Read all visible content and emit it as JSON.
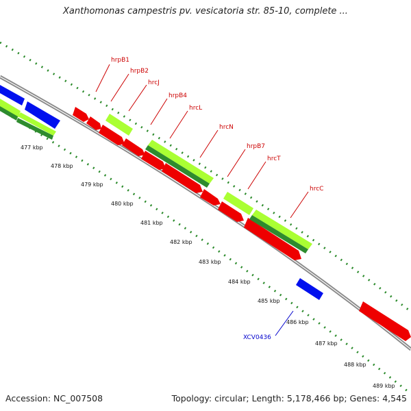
{
  "header": {
    "title": "Xanthomonas campestris pv. vesicatoria str. 85-10, complete ..."
  },
  "footer": {
    "accession": "Accession: NC_007508",
    "topology": "Topology: circular; Length: 5,178,466 bp; Genes: 4,545"
  },
  "colors": {
    "backbone": "#8a8a8a",
    "tick": "#2a8a2a",
    "red_gene": "#ee0000",
    "blue_gene": "#0010ee",
    "light_green_gene": "#aaff33",
    "dark_green_gene": "#2e8b2e",
    "red_label": "#cc0000",
    "blue_label": "#0000cc"
  },
  "kbp_labels": [
    "477 kbp",
    "478 kbp",
    "479 kbp",
    "480 kbp",
    "481 kbp",
    "482 kbp",
    "483 kbp",
    "484 kbp",
    "485 kbp",
    "486 kbp",
    "487 kbp",
    "488 kbp",
    "489 kbp"
  ],
  "gene_labels": [
    "hrpB1",
    "hrpB2",
    "hrcJ",
    "hrpB4",
    "hrcL",
    "hrcN",
    "hrpB7",
    "hrcT",
    "hrcC",
    "XCV0436"
  ]
}
